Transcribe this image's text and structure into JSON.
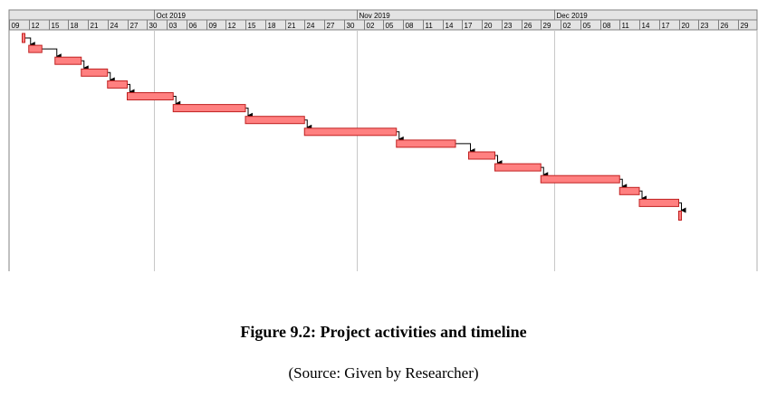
{
  "chart_data": {
    "type": "gantt",
    "timescale": {
      "months": [
        "Oct 2019",
        "Nov 2019",
        "Dec 2019"
      ],
      "day_ticks": [
        "09",
        "12",
        "15",
        "18",
        "21",
        "24",
        "27",
        "30",
        "03",
        "06",
        "09",
        "12",
        "15",
        "18",
        "21",
        "24",
        "27",
        "30",
        "02",
        "05",
        "08",
        "11",
        "14",
        "17",
        "20",
        "23",
        "26",
        "29",
        "02",
        "05",
        "08",
        "11",
        "14",
        "17",
        "20",
        "23",
        "26",
        "29"
      ]
    },
    "tasks": [
      {
        "start": "2019-09-11",
        "end": "2019-09-11"
      },
      {
        "start": "2019-09-12",
        "end": "2019-09-13"
      },
      {
        "start": "2019-09-16",
        "end": "2019-09-19"
      },
      {
        "start": "2019-09-20",
        "end": "2019-09-23"
      },
      {
        "start": "2019-09-24",
        "end": "2019-09-26"
      },
      {
        "start": "2019-09-27",
        "end": "2019-10-03"
      },
      {
        "start": "2019-10-04",
        "end": "2019-10-14"
      },
      {
        "start": "2019-10-15",
        "end": "2019-10-23"
      },
      {
        "start": "2019-10-24",
        "end": "2019-11-06"
      },
      {
        "start": "2019-11-07",
        "end": "2019-11-15"
      },
      {
        "start": "2019-11-18",
        "end": "2019-11-21"
      },
      {
        "start": "2019-11-22",
        "end": "2019-11-28"
      },
      {
        "start": "2019-11-29",
        "end": "2019-12-10"
      },
      {
        "start": "2019-12-11",
        "end": "2019-12-13"
      },
      {
        "start": "2019-12-14",
        "end": "2019-12-19"
      },
      {
        "start": "2019-12-20",
        "end": "2019-12-20"
      }
    ],
    "dependencies": "finish-to-start",
    "bar_color": "#ff8080",
    "bar_border_color": "#c02020",
    "link_color": "#000000",
    "grid": "vertical lines at month starts"
  },
  "caption": {
    "title": "Figure 9.2: Project activities and timeline",
    "source": "(Source: Given by Researcher)"
  }
}
